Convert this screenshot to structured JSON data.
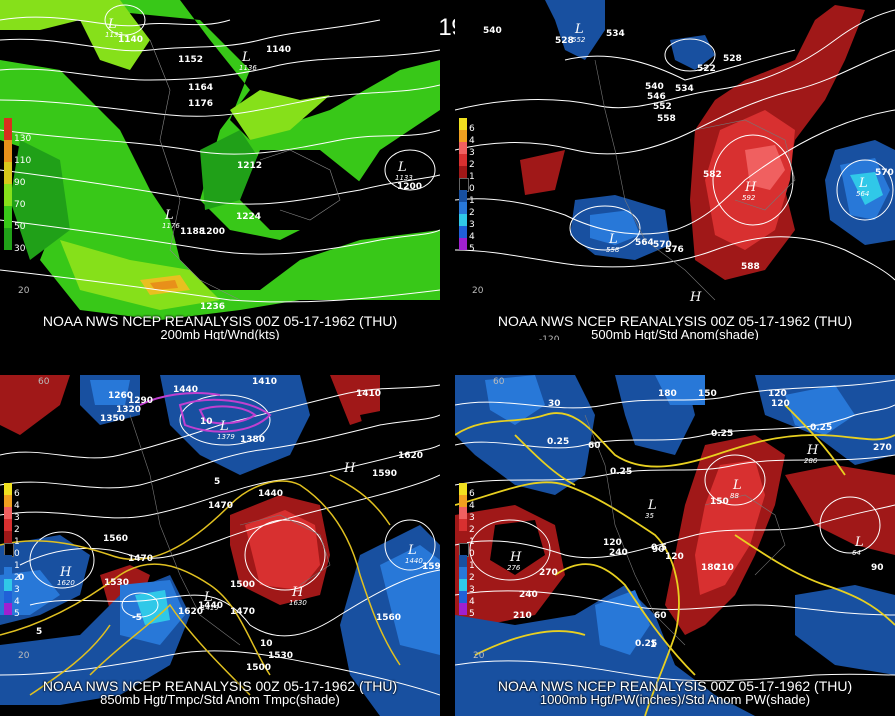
{
  "title": "00Z 05-17-1962 (THU)",
  "panels": [
    {
      "id": "200mb",
      "caption_line1": "NOAA NWS NCEP REANALYSIS 00Z 05-17-1962 (THU)",
      "caption_line2": "200mb Hgt/Wnd(kts)",
      "legend": [
        {
          "label": "130",
          "color": "#d8301e"
        },
        {
          "label": "110",
          "color": "#e8901a"
        },
        {
          "label": "90",
          "color": "#d8c81a"
        },
        {
          "label": "70",
          "color": "#86e01a"
        },
        {
          "label": "50",
          "color": "#38c818"
        },
        {
          "label": "30",
          "color": "#20a018"
        }
      ],
      "contour_labels": [
        "1140",
        "1152",
        "1140",
        "1164",
        "1176",
        "1212",
        "1224",
        "1188",
        "1200",
        "1236",
        "1200"
      ],
      "centers": [
        {
          "sym": "L",
          "value": "1133"
        },
        {
          "sym": "L",
          "value": "1136"
        },
        {
          "sym": "L",
          "value": "1176"
        },
        {
          "sym": "L",
          "value": "1133"
        }
      ],
      "degree_labels": [
        "20"
      ]
    },
    {
      "id": "500mb",
      "caption_line1": "NOAA NWS NCEP REANALYSIS 00Z 05-17-1962 (THU)",
      "caption_line2": "500mb Hgt/Std Anom(shade)",
      "legend": [
        {
          "label": "6",
          "color": "#f0e020"
        },
        {
          "label": "4",
          "color": "#f0a020"
        },
        {
          "label": "3",
          "color": "#f06060"
        },
        {
          "label": "2",
          "color": "#d83030"
        },
        {
          "label": "1",
          "color": "#a01818"
        },
        {
          "label": "0",
          "color": "#000000"
        },
        {
          "label": "1",
          "color": "#1850a0"
        },
        {
          "label": "2",
          "color": "#2878d8"
        },
        {
          "label": "3",
          "color": "#30c8e8"
        },
        {
          "label": "4",
          "color": "#2060d8"
        },
        {
          "label": "5",
          "color": "#a020d0"
        }
      ],
      "contour_labels": [
        "540",
        "534",
        "528",
        "528",
        "522",
        "534",
        "540",
        "546",
        "552",
        "558",
        "582",
        "564",
        "570",
        "576",
        "588",
        "570"
      ],
      "centers": [
        {
          "sym": "L",
          "value": "552"
        },
        {
          "sym": "H",
          "value": "592"
        },
        {
          "sym": "L",
          "value": "558"
        },
        {
          "sym": "L",
          "value": "564"
        },
        {
          "sym": "H",
          "value": ""
        }
      ],
      "degree_labels": [
        "20",
        "-120"
      ]
    },
    {
      "id": "850mb",
      "caption_line1": "NOAA NWS NCEP REANALYSIS 00Z 05-17-1962 (THU)",
      "caption_line2": "850mb Hgt/Tmpc/Std Anom Tmpc(shade)",
      "legend": [
        {
          "label": "6",
          "color": "#f0e020"
        },
        {
          "label": "4",
          "color": "#f0a020"
        },
        {
          "label": "3",
          "color": "#f06060"
        },
        {
          "label": "2",
          "color": "#d83030"
        },
        {
          "label": "1",
          "color": "#a01818"
        },
        {
          "label": "0",
          "color": "#000000"
        },
        {
          "label": "1",
          "color": "#1850a0"
        },
        {
          "label": "2",
          "color": "#2878d8"
        },
        {
          "label": "3",
          "color": "#30c8e8"
        },
        {
          "label": "4",
          "color": "#2060d8"
        },
        {
          "label": "5",
          "color": "#a020d0"
        }
      ],
      "contour_labels": [
        "1260",
        "1290",
        "1320",
        "1350",
        "1440",
        "1410",
        "1410",
        "1380",
        "1620",
        "1590",
        "1440",
        "1470",
        "1560",
        "1530",
        "1500",
        "1440",
        "1470",
        "1500",
        "1530",
        "1560",
        "1590",
        "1620",
        "1470",
        "10",
        "10",
        "5",
        "0",
        "-5",
        "5"
      ],
      "centers": [
        {
          "sym": "L",
          "value": "1379"
        },
        {
          "sym": "H",
          "value": ""
        },
        {
          "sym": "H",
          "value": "1620"
        },
        {
          "sym": "L",
          "value": "1419"
        },
        {
          "sym": "H",
          "value": "1630"
        },
        {
          "sym": "L",
          "value": "1440"
        }
      ],
      "degree_labels": [
        "60",
        "20"
      ]
    },
    {
      "id": "1000mb",
      "caption_line1": "NOAA NWS NCEP REANALYSIS 00Z 05-17-1962 (THU)",
      "caption_line2": "1000mb Hgt/PW(inches)/Std Anom PW(shade)",
      "legend": [
        {
          "label": "6",
          "color": "#f0e020"
        },
        {
          "label": "4",
          "color": "#f0a020"
        },
        {
          "label": "3",
          "color": "#f06060"
        },
        {
          "label": "2",
          "color": "#d83030"
        },
        {
          "label": "1",
          "color": "#a01818"
        },
        {
          "label": "0",
          "color": "#000000"
        },
        {
          "label": "1",
          "color": "#1850a0"
        },
        {
          "label": "2",
          "color": "#2878d8"
        },
        {
          "label": "3",
          "color": "#30c8e8"
        },
        {
          "label": "4",
          "color": "#2060d8"
        },
        {
          "label": "5",
          "color": "#a020d0"
        }
      ],
      "contour_labels": [
        "30",
        "180",
        "150",
        "120",
        "120",
        "60",
        "0.25",
        "0.25",
        "0.25",
        "0.25",
        "270",
        "150",
        "120",
        "240",
        "0.5",
        "90",
        "120",
        "180",
        "210",
        "60",
        "0.25",
        "1",
        "240",
        "270",
        "210",
        "90"
      ],
      "centers": [
        {
          "sym": "L",
          "value": "88"
        },
        {
          "sym": "L",
          "value": "35"
        },
        {
          "sym": "H",
          "value": "276"
        },
        {
          "sym": "H",
          "value": "286"
        },
        {
          "sym": "L",
          "value": "64"
        }
      ],
      "degree_labels": [
        "60",
        "20"
      ]
    }
  ]
}
